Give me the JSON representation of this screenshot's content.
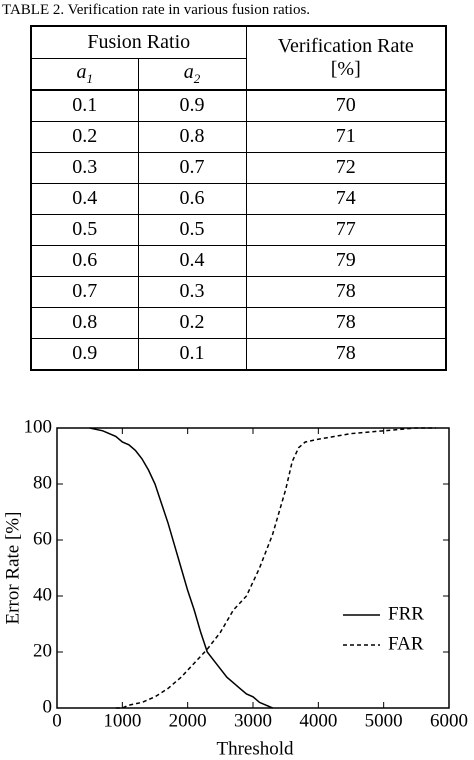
{
  "table": {
    "caption": "TABLE 2. Verification rate in various fusion ratios.",
    "header": {
      "group": "Fusion Ratio",
      "rate": "Verification Rate",
      "unit": "[%]"
    },
    "subheaders": [
      {
        "symbol": "a",
        "index": "1"
      },
      {
        "symbol": "a",
        "index": "2"
      }
    ],
    "rows": [
      [
        "0.1",
        "0.9",
        "70"
      ],
      [
        "0.2",
        "0.8",
        "71"
      ],
      [
        "0.3",
        "0.7",
        "72"
      ],
      [
        "0.4",
        "0.6",
        "74"
      ],
      [
        "0.5",
        "0.5",
        "77"
      ],
      [
        "0.6",
        "0.4",
        "79"
      ],
      [
        "0.7",
        "0.3",
        "78"
      ],
      [
        "0.8",
        "0.2",
        "78"
      ],
      [
        "0.9",
        "0.1",
        "78"
      ]
    ]
  },
  "chart_data": {
    "type": "line",
    "xlabel": "Threshold",
    "ylabel": "Error Rate [%]",
    "xlim": [
      0,
      6000
    ],
    "xticks": [
      0,
      1000,
      2000,
      3000,
      4000,
      5000,
      6000
    ],
    "ylim": [
      0,
      100
    ],
    "yticks": [
      0,
      20,
      40,
      60,
      80,
      100
    ],
    "legend": "lower right",
    "series": [
      {
        "name": "FRR",
        "color": "#000000",
        "linestyle": "solid",
        "x": [
          500,
          700,
          900,
          1000,
          1100,
          1200,
          1300,
          1400,
          1500,
          1600,
          1700,
          1800,
          1900,
          2000,
          2100,
          2200,
          2300,
          2400,
          2500,
          2600,
          2700,
          2800,
          2900,
          3000,
          3100,
          3200,
          3300
        ],
        "values": [
          100,
          99,
          97,
          95,
          94,
          92,
          89,
          85,
          80,
          73,
          66,
          58,
          50,
          42,
          35,
          27,
          20,
          17,
          14,
          11,
          9,
          7,
          5,
          4,
          2,
          1,
          0
        ]
      },
      {
        "name": "FAR",
        "color": "#000000",
        "linestyle": "dashed",
        "x": [
          900,
          1000,
          1100,
          1300,
          1500,
          1700,
          1900,
          2100,
          2300,
          2500,
          2700,
          2900,
          3100,
          3300,
          3500,
          3600,
          3700,
          3800,
          4000,
          4500,
          5000,
          5500,
          5800
        ],
        "values": [
          0,
          0,
          1,
          2,
          4,
          7,
          11,
          16,
          21,
          27,
          35,
          40,
          50,
          62,
          78,
          88,
          93,
          95,
          96,
          98,
          99,
          100,
          100
        ]
      }
    ]
  }
}
